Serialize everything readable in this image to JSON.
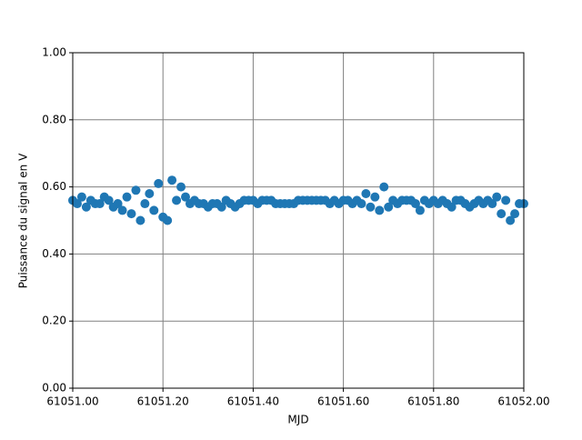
{
  "chart_data": {
    "type": "scatter",
    "xlabel": "MJD",
    "ylabel": "Puissance du signal en V",
    "color": "#1f77b4",
    "grid": true,
    "xlim": [
      61051.0,
      61052.0
    ],
    "xticks": [
      {
        "value": 61051.0,
        "label": "61051.00"
      },
      {
        "value": 61051.2,
        "label": "61051.20"
      },
      {
        "value": 61051.4,
        "label": "61051.40"
      },
      {
        "value": 61051.6,
        "label": "61051.60"
      },
      {
        "value": 61051.8,
        "label": "61051.80"
      },
      {
        "value": 61052.0,
        "label": "61052.00"
      }
    ],
    "ylim": [
      0,
      1
    ],
    "yticks": [
      {
        "value": 0,
        "label": "0.00"
      },
      {
        "value": 0.2,
        "label": "0.20"
      },
      {
        "value": 0.4,
        "label": "0.40"
      },
      {
        "value": 0.6,
        "label": "0.60"
      },
      {
        "value": 0.8,
        "label": "0.80"
      },
      {
        "value": 1,
        "label": "1.00"
      }
    ],
    "x": [
      61051.0,
      61051.01,
      61051.02,
      61051.03,
      61051.04,
      61051.05,
      61051.06,
      61051.07,
      61051.08,
      61051.09,
      61051.1,
      61051.11,
      61051.12,
      61051.13,
      61051.14,
      61051.15,
      61051.16,
      61051.17,
      61051.18,
      61051.19,
      61051.2,
      61051.21,
      61051.22,
      61051.23,
      61051.24,
      61051.25,
      61051.26,
      61051.27,
      61051.28,
      61051.29,
      61051.3,
      61051.31,
      61051.32,
      61051.33,
      61051.34,
      61051.35,
      61051.36,
      61051.37,
      61051.38,
      61051.39,
      61051.4,
      61051.41,
      61051.42,
      61051.43,
      61051.44,
      61051.45,
      61051.46,
      61051.47,
      61051.48,
      61051.49,
      61051.5,
      61051.51,
      61051.52,
      61051.53,
      61051.54,
      61051.55,
      61051.56,
      61051.57,
      61051.58,
      61051.59,
      61051.6,
      61051.61,
      61051.62,
      61051.63,
      61051.64,
      61051.65,
      61051.66,
      61051.67,
      61051.68,
      61051.69,
      61051.7,
      61051.71,
      61051.72,
      61051.73,
      61051.74,
      61051.75,
      61051.76,
      61051.77,
      61051.78,
      61051.79,
      61051.8,
      61051.81,
      61051.82,
      61051.83,
      61051.84,
      61051.85,
      61051.86,
      61051.87,
      61051.88,
      61051.89,
      61051.9,
      61051.91,
      61051.92,
      61051.93,
      61051.94,
      61051.95,
      61051.96,
      61051.97,
      61051.98,
      61051.99,
      61052.0
    ],
    "values": [
      0.56,
      0.55,
      0.57,
      0.54,
      0.56,
      0.55,
      0.55,
      0.57,
      0.56,
      0.54,
      0.55,
      0.53,
      0.57,
      0.52,
      0.59,
      0.5,
      0.55,
      0.58,
      0.53,
      0.61,
      0.51,
      0.5,
      0.62,
      0.56,
      0.6,
      0.57,
      0.55,
      0.56,
      0.55,
      0.55,
      0.54,
      0.55,
      0.55,
      0.54,
      0.56,
      0.55,
      0.54,
      0.55,
      0.56,
      0.56,
      0.56,
      0.55,
      0.56,
      0.56,
      0.56,
      0.55,
      0.55,
      0.55,
      0.55,
      0.55,
      0.56,
      0.56,
      0.56,
      0.56,
      0.56,
      0.56,
      0.56,
      0.55,
      0.56,
      0.55,
      0.56,
      0.56,
      0.55,
      0.56,
      0.55,
      0.58,
      0.54,
      0.57,
      0.53,
      0.6,
      0.54,
      0.56,
      0.55,
      0.56,
      0.56,
      0.56,
      0.55,
      0.53,
      0.56,
      0.55,
      0.56,
      0.55,
      0.56,
      0.55,
      0.54,
      0.56,
      0.56,
      0.55,
      0.54,
      0.55,
      0.56,
      0.55,
      0.56,
      0.55,
      0.57,
      0.52,
      0.56,
      0.5,
      0.52,
      0.55,
      0.55
    ]
  }
}
